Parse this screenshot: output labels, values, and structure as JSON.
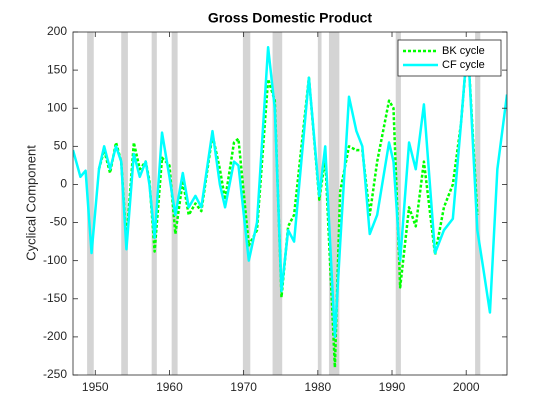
{
  "chart_data": {
    "type": "line",
    "title": "Gross Domestic Product",
    "ylabel": "Cyclical Component",
    "xlim": [
      1947,
      2005.5
    ],
    "ylim": [
      -250,
      200
    ],
    "xticks": [
      1950,
      1960,
      1970,
      1980,
      1990,
      2000
    ],
    "yticks": [
      -250,
      -200,
      -150,
      -100,
      -50,
      0,
      50,
      100,
      150,
      200
    ],
    "legend": "northeast",
    "recession_color": "#d4d4d4",
    "recessions": [
      [
        1948.9,
        1949.8
      ],
      [
        1953.5,
        1954.4
      ],
      [
        1957.6,
        1958.3
      ],
      [
        1960.3,
        1961.1
      ],
      [
        1969.9,
        1970.9
      ],
      [
        1973.9,
        1975.2
      ],
      [
        1980.0,
        1980.5
      ],
      [
        1981.5,
        1982.9
      ],
      [
        1990.5,
        1991.2
      ],
      [
        2001.2,
        2001.9
      ]
    ],
    "x": [
      1947,
      1948,
      1948.7,
      1949.5,
      1950.5,
      1951.2,
      1952,
      1952.8,
      1953.5,
      1954.2,
      1955.2,
      1956,
      1956.8,
      1957.3,
      1958,
      1959,
      1960,
      1960.8,
      1961.8,
      1962.6,
      1963.5,
      1964.3,
      1965.8,
      1966.8,
      1967.5,
      1968.7,
      1969.3,
      1970.7,
      1971.8,
      1973.3,
      1974.2,
      1975.1,
      1976,
      1976.8,
      1978.8,
      1980.2,
      1981,
      1982.3,
      1983,
      1984.2,
      1985.2,
      1986,
      1987,
      1988,
      1989.6,
      1990.2,
      1991.1,
      1992.3,
      1993.2,
      1994.3,
      1995.8,
      1997,
      1998.2,
      1999.3,
      2000.2,
      2001.5,
      2002.3,
      2003.2,
      2004.2,
      2005.5
    ],
    "series": [
      {
        "name": "BK cycle",
        "color": "#00ff00",
        "style": "dotted",
        "values": [
          null,
          null,
          null,
          null,
          20,
          45,
          15,
          55,
          30,
          -75,
          55,
          20,
          30,
          5,
          -88,
          35,
          25,
          -65,
          5,
          -40,
          -25,
          -35,
          65,
          20,
          -20,
          55,
          60,
          -80,
          -60,
          138,
          110,
          -148,
          -55,
          -40,
          140,
          -20,
          35,
          -240,
          -10,
          50,
          45,
          45,
          -40,
          30,
          110,
          100,
          -135,
          -30,
          -55,
          30,
          -92,
          -30,
          0,
          80,
          185,
          -40,
          null,
          null,
          null,
          null
        ]
      },
      {
        "name": "CF cycle",
        "color": "#00ffff",
        "style": "solid",
        "values": [
          45,
          10,
          18,
          -90,
          20,
          50,
          20,
          50,
          30,
          -85,
          40,
          10,
          30,
          0,
          -70,
          68,
          10,
          -40,
          15,
          -30,
          -15,
          -30,
          70,
          0,
          -30,
          30,
          25,
          -100,
          -50,
          180,
          100,
          -140,
          -60,
          -75,
          140,
          -15,
          50,
          -200,
          -80,
          115,
          70,
          50,
          -65,
          -40,
          55,
          30,
          -100,
          55,
          20,
          105,
          -90,
          -60,
          -45,
          80,
          188,
          -60,
          -110,
          -168,
          20,
          118
        ]
      }
    ]
  }
}
